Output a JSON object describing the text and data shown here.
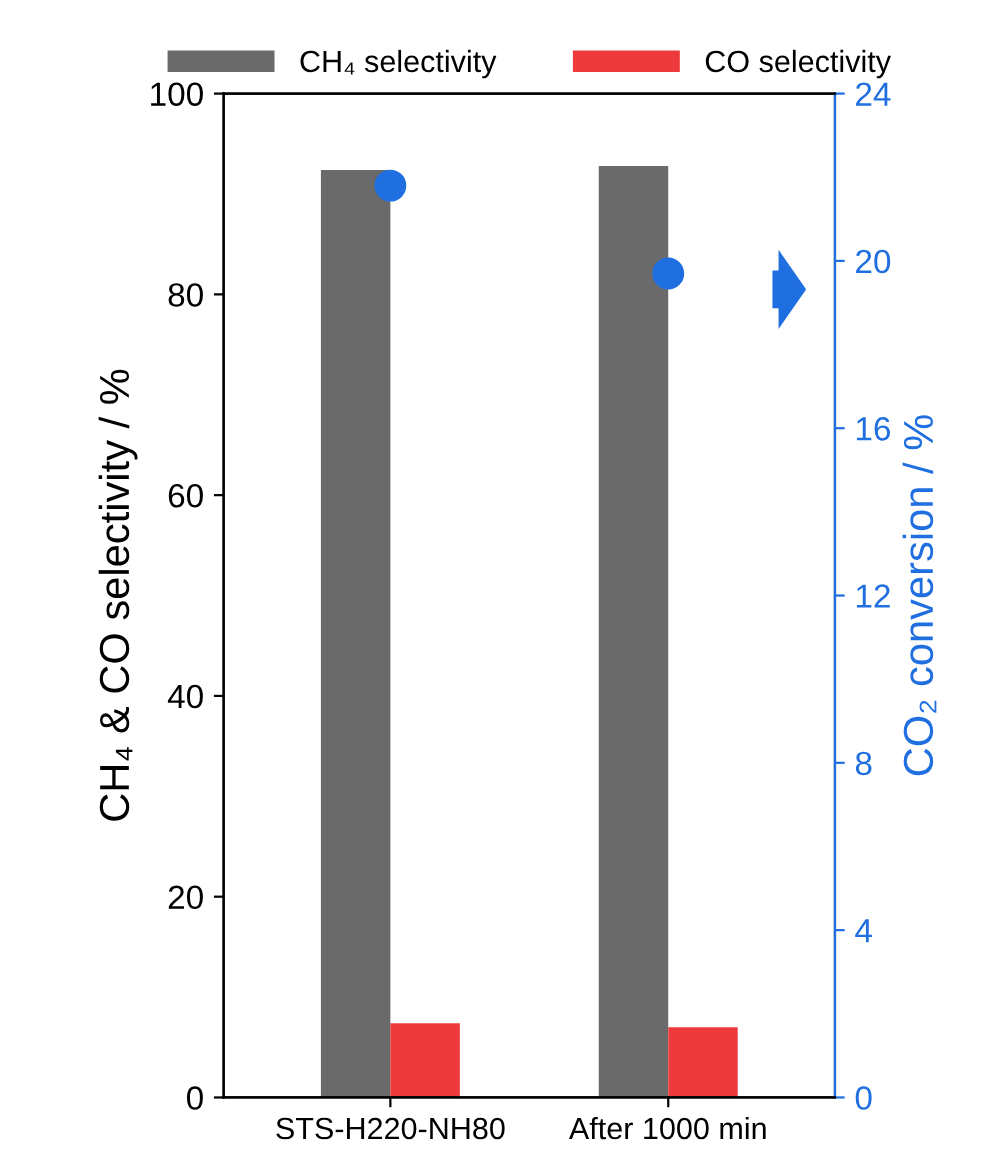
{
  "chart_data": {
    "type": "bar",
    "categories": [
      "STS-H220-NH80",
      "After 1000 min"
    ],
    "series": [
      {
        "name": "CH₄ selectivity",
        "color": "#6a6a6a",
        "values": [
          92.4,
          92.8
        ]
      },
      {
        "name": "CO selectivity",
        "color": "#ee3a3c",
        "values": [
          7.4,
          7.0
        ]
      },
      {
        "type": "scatter",
        "axis": "y2",
        "color": "#1f6fe0",
        "values": [
          21.8,
          19.7
        ]
      }
    ],
    "ylabel": "CH₄ & CO selectivity / %",
    "y2label": "CO₂ conversion / %",
    "ylim": [
      0,
      100
    ],
    "yticks": [
      0,
      20,
      40,
      60,
      80,
      100
    ],
    "y2lim": [
      0,
      24
    ],
    "y2ticks": [
      0,
      4,
      8,
      12,
      16,
      20,
      24
    ],
    "legend": "top",
    "marker": "circle",
    "grid": false
  }
}
